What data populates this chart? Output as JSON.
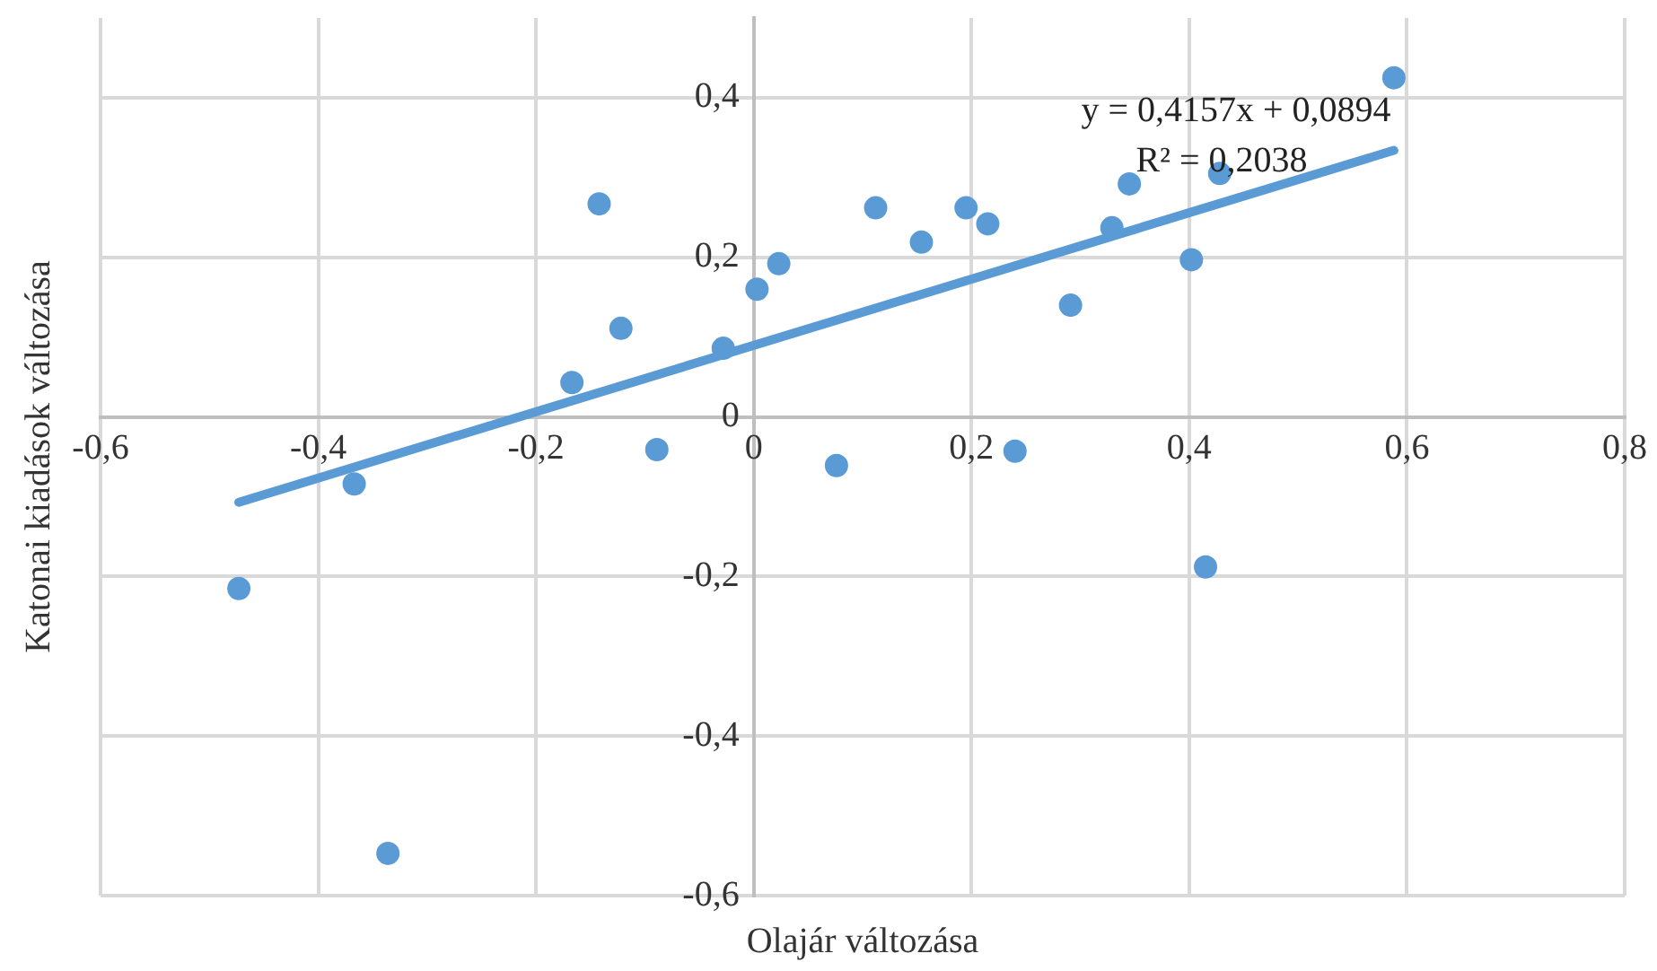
{
  "chart_data": {
    "type": "scatter",
    "xlabel": "Olajár változása",
    "ylabel": "Katonai kiadások változása",
    "annotations": [
      "y = 0,4157x + 0,0894",
      "R² = 0,2038"
    ],
    "xlim": [
      -0.6,
      0.8
    ],
    "xticks": [
      {
        "value": -0.6,
        "label": "-0,6"
      },
      {
        "value": -0.4,
        "label": "-0,4"
      },
      {
        "value": -0.2,
        "label": "-0,2"
      },
      0,
      {
        "value": 0.2,
        "label": "0,2"
      },
      {
        "value": 0.4,
        "label": "0,4"
      },
      {
        "value": 0.6,
        "label": "0,6"
      },
      {
        "value": 0.8,
        "label": "0,8"
      }
    ],
    "ylim": [
      -0.6,
      0.5
    ],
    "yticks": [
      {
        "value": -0.6,
        "label": "-0,6"
      },
      {
        "value": -0.4,
        "label": "-0,4"
      },
      {
        "value": -0.2,
        "label": "-0,2"
      },
      0,
      {
        "value": 0.2,
        "label": "0,2"
      },
      {
        "value": 0.4,
        "label": "0,4"
      }
    ],
    "grid": true,
    "series": [
      {
        "type": "scatter",
        "marker": "circle",
        "color": "#5b9bd5",
        "x": [
          -0.473,
          -0.367,
          -0.336,
          -0.167,
          -0.142,
          -0.122,
          -0.089,
          -0.028,
          0.003,
          0.023,
          0.076,
          0.112,
          0.154,
          0.195,
          0.215,
          0.24,
          0.291,
          0.329,
          0.345,
          0.402,
          0.415,
          0.428,
          0.588
        ],
        "values": [
          -0.215,
          -0.084,
          -0.547,
          0.043,
          0.267,
          0.111,
          -0.041,
          0.086,
          0.16,
          0.192,
          -0.061,
          0.262,
          0.219,
          0.262,
          0.242,
          -0.043,
          0.14,
          0.237,
          0.292,
          0.197,
          -0.188,
          0.305,
          0.425
        ]
      },
      {
        "type": "line",
        "marker": "none",
        "color": "#5b9bd5",
        "x": [
          -0.473,
          0.588
        ],
        "values": [
          -0.107,
          0.334
        ]
      }
    ]
  }
}
